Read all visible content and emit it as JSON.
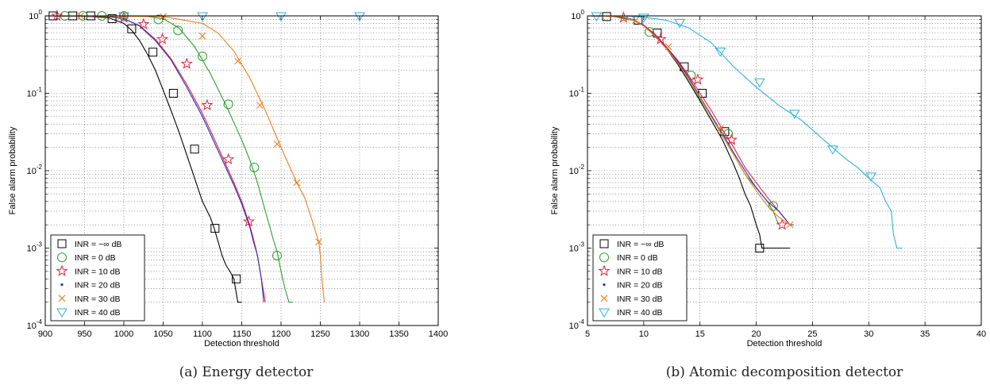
{
  "chart_data": [
    {
      "type": "line",
      "caption": "(a)  Energy detector",
      "xlabel": "Detection threshold",
      "ylabel": "False alarm probability",
      "xlim": [
        900,
        1400
      ],
      "ylim": [
        0.0001,
        1
      ],
      "yscale": "log",
      "grid": true,
      "legend_position": "bottom-left",
      "xticks": [
        900,
        950,
        1000,
        1050,
        1100,
        1150,
        1200,
        1250,
        1300,
        1350,
        1400
      ],
      "series": [
        {
          "name": "INR = −∞ dB",
          "color": "#000000",
          "marker": "square",
          "x": [
            900,
            940,
            980,
            1000,
            1010,
            1020,
            1030,
            1040,
            1050,
            1060,
            1070,
            1080,
            1090,
            1100,
            1110,
            1115,
            1120,
            1125,
            1130,
            1135,
            1140,
            1145,
            1150
          ],
          "y": [
            1,
            1,
            0.95,
            0.8,
            0.65,
            0.48,
            0.32,
            0.2,
            0.11,
            0.06,
            0.032,
            0.016,
            0.008,
            0.004,
            0.0025,
            0.0018,
            0.0012,
            0.0008,
            0.0006,
            0.0005,
            0.0004,
            0.0002,
            0.0002
          ],
          "markers_x": [
            910,
            935,
            958,
            985,
            1010,
            1037,
            1063,
            1090,
            1116,
            1143
          ],
          "markers_y": [
            1,
            1,
            1,
            0.92,
            0.68,
            0.34,
            0.1,
            0.019,
            0.0018,
            0.0004
          ]
        },
        {
          "name": "INR = 0 dB",
          "color": "#2ca02c",
          "marker": "circle",
          "x": [
            900,
            1000,
            1030,
            1050,
            1070,
            1090,
            1110,
            1130,
            1150,
            1160,
            1170,
            1180,
            1185,
            1190,
            1195,
            1200,
            1205,
            1210,
            1215
          ],
          "y": [
            1,
            1,
            0.98,
            0.92,
            0.7,
            0.4,
            0.18,
            0.07,
            0.025,
            0.014,
            0.007,
            0.003,
            0.002,
            0.0013,
            0.0009,
            0.0005,
            0.0003,
            0.0002,
            0.0002
          ],
          "markers_x": [
            925,
            948,
            972,
            1000,
            1044,
            1069,
            1100,
            1133,
            1166,
            1195
          ],
          "markers_y": [
            1,
            1,
            1,
            1,
            0.9,
            0.65,
            0.3,
            0.072,
            0.011,
            0.0008
          ]
        },
        {
          "name": "INR = 10 dB",
          "color": "#e0213e",
          "marker": "star",
          "x": [
            900,
            980,
            1000,
            1020,
            1040,
            1060,
            1080,
            1100,
            1120,
            1140,
            1150,
            1160,
            1165,
            1170,
            1175,
            1180
          ],
          "y": [
            1,
            0.98,
            0.92,
            0.75,
            0.5,
            0.28,
            0.13,
            0.055,
            0.02,
            0.007,
            0.004,
            0.002,
            0.0013,
            0.0008,
            0.0004,
            0.0002
          ],
          "markers_x": [
            915,
            1000,
            1025,
            1049,
            1080,
            1106,
            1133,
            1159
          ],
          "markers_y": [
            1,
            0.95,
            0.78,
            0.5,
            0.24,
            0.07,
            0.014,
            0.0022
          ]
        },
        {
          "name": "INR = 20 dB",
          "color": "#2b2db8",
          "marker": "dot",
          "x": [
            900,
            980,
            1000,
            1020,
            1040,
            1060,
            1080,
            1100,
            1120,
            1140,
            1150,
            1160,
            1165,
            1170,
            1175,
            1178
          ],
          "y": [
            1,
            0.98,
            0.92,
            0.74,
            0.48,
            0.27,
            0.12,
            0.05,
            0.018,
            0.0065,
            0.0037,
            0.0019,
            0.0012,
            0.0008,
            0.0004,
            0.0002
          ],
          "markers_x": [],
          "markers_y": []
        },
        {
          "name": "INR = 30 dB",
          "color": "#f07e1e",
          "marker": "x",
          "x": [
            900,
            1050,
            1100,
            1120,
            1140,
            1160,
            1180,
            1200,
            1220,
            1230,
            1240,
            1248,
            1250,
            1252,
            1255
          ],
          "y": [
            1,
            0.98,
            0.8,
            0.6,
            0.35,
            0.16,
            0.06,
            0.02,
            0.007,
            0.0045,
            0.0022,
            0.0012,
            0.0008,
            0.0004,
            0.0002
          ],
          "markers_x": [
            945,
            1000,
            1050,
            1100,
            1145,
            1173,
            1195,
            1220,
            1248
          ],
          "markers_y": [
            1,
            1,
            0.98,
            0.55,
            0.26,
            0.07,
            0.022,
            0.007,
            0.0012
          ]
        },
        {
          "name": "INR = 40 dB",
          "color": "#2eb0de",
          "marker": "triangle",
          "x": [
            900,
            1400
          ],
          "y": [
            1,
            1
          ],
          "markers_x": [
            1000,
            1100,
            1200,
            1300
          ],
          "markers_y": [
            1,
            1,
            1,
            1
          ]
        }
      ]
    },
    {
      "type": "line",
      "caption": "(b)  Atomic decomposition detector",
      "xlabel": "Detection threshold",
      "ylabel": "False alarm probability",
      "xlim": [
        5,
        40
      ],
      "ylim": [
        0.0001,
        1
      ],
      "yscale": "log",
      "grid": true,
      "legend_position": "bottom-left",
      "xticks": [
        5,
        10,
        15,
        20,
        25,
        30,
        35,
        40
      ],
      "series": [
        {
          "name": "INR = −∞ dB",
          "color": "#000000",
          "marker": "square",
          "x": [
            5,
            7,
            9,
            10,
            11,
            12,
            13,
            14,
            15,
            16,
            17,
            18,
            18.5,
            19,
            19.5,
            20,
            20.3,
            20.5,
            21,
            22,
            23
          ],
          "y": [
            1,
            1,
            0.9,
            0.75,
            0.55,
            0.38,
            0.24,
            0.14,
            0.08,
            0.045,
            0.025,
            0.012,
            0.008,
            0.005,
            0.0035,
            0.002,
            0.0015,
            0.001,
            0.001,
            0.001,
            0.001
          ],
          "markers_x": [
            6.7,
            9.5,
            11.2,
            13.6,
            15.2,
            17.2,
            20.3
          ],
          "markers_y": [
            0.98,
            0.88,
            0.6,
            0.22,
            0.1,
            0.032,
            0.001
          ]
        },
        {
          "name": "INR = 0 dB",
          "color": "#2ca02c",
          "marker": "circle",
          "x": [
            5,
            7,
            9,
            10,
            11,
            12,
            13,
            14,
            15,
            16,
            17,
            18,
            19,
            20,
            21,
            21.5,
            22
          ],
          "y": [
            1,
            1,
            0.88,
            0.74,
            0.56,
            0.38,
            0.25,
            0.15,
            0.085,
            0.05,
            0.028,
            0.016,
            0.009,
            0.006,
            0.004,
            0.003,
            0.002
          ],
          "markers_x": [
            10.5,
            14.2,
            17.5,
            21.5
          ],
          "markers_y": [
            0.62,
            0.17,
            0.03,
            0.0035
          ]
        },
        {
          "name": "INR = 10 dB",
          "color": "#e0213e",
          "marker": "star",
          "x": [
            5,
            8,
            9,
            10,
            11,
            12,
            13,
            14,
            15,
            16,
            17,
            18,
            19,
            20,
            21,
            22,
            23
          ],
          "y": [
            1,
            0.98,
            0.9,
            0.76,
            0.58,
            0.4,
            0.27,
            0.17,
            0.1,
            0.06,
            0.034,
            0.02,
            0.011,
            0.007,
            0.0045,
            0.003,
            0.002
          ],
          "markers_x": [
            8.2,
            11.5,
            14.8,
            17.8,
            22.3
          ],
          "markers_y": [
            0.95,
            0.5,
            0.15,
            0.025,
            0.002
          ]
        },
        {
          "name": "INR = 20 dB",
          "color": "#2b2db8",
          "marker": "dot",
          "x": [
            5,
            8,
            9,
            10,
            11,
            12,
            13,
            14,
            15,
            16,
            17,
            18,
            19,
            20,
            21,
            22,
            23,
            23.3
          ],
          "y": [
            1,
            0.98,
            0.9,
            0.75,
            0.56,
            0.39,
            0.26,
            0.16,
            0.09,
            0.052,
            0.03,
            0.017,
            0.01,
            0.006,
            0.004,
            0.003,
            0.002,
            0.002
          ],
          "markers_x": [],
          "markers_y": []
        },
        {
          "name": "INR = 30 dB",
          "color": "#f07e1e",
          "marker": "x",
          "x": [
            5,
            8,
            9,
            10,
            11,
            12,
            13,
            14,
            15,
            16,
            17,
            18,
            19,
            20,
            21,
            22,
            23
          ],
          "y": [
            1,
            0.98,
            0.89,
            0.74,
            0.55,
            0.38,
            0.25,
            0.15,
            0.088,
            0.05,
            0.028,
            0.016,
            0.009,
            0.0055,
            0.0035,
            0.0025,
            0.002
          ],
          "markers_x": [
            9.3,
            12.2,
            16.8,
            23
          ],
          "markers_y": [
            0.88,
            0.4,
            0.035,
            0.002
          ]
        },
        {
          "name": "INR = 40 dB",
          "color": "#2eb0de",
          "marker": "triangle",
          "x": [
            5,
            8,
            10,
            12,
            14,
            16,
            18,
            20,
            22,
            24,
            26,
            28,
            29,
            30,
            31,
            31.5,
            32,
            32.2,
            32.5,
            33
          ],
          "y": [
            1,
            1,
            0.96,
            0.88,
            0.7,
            0.45,
            0.22,
            0.12,
            0.07,
            0.045,
            0.025,
            0.014,
            0.011,
            0.008,
            0.006,
            0.004,
            0.003,
            0.0015,
            0.001,
            0.001
          ],
          "markers_x": [
            5.8,
            10,
            13.2,
            16.8,
            20.3,
            23.4,
            26.8,
            30.2
          ],
          "markers_y": [
            1,
            0.96,
            0.82,
            0.35,
            0.14,
            0.055,
            0.019,
            0.0085
          ]
        }
      ]
    }
  ]
}
